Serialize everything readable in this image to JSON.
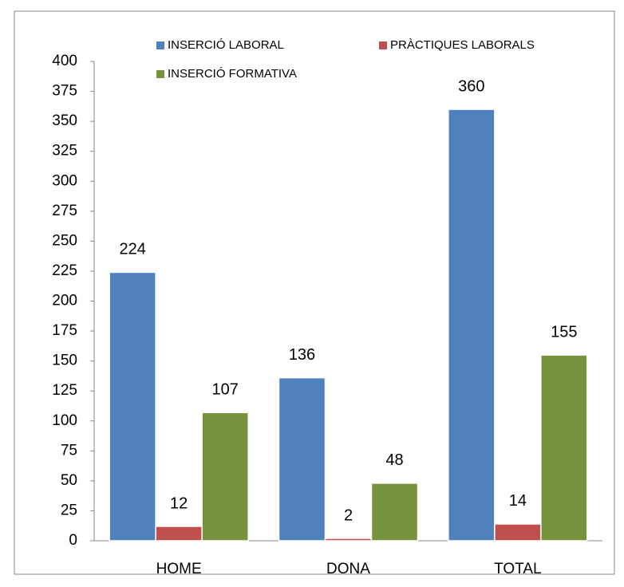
{
  "chart_data": {
    "type": "bar",
    "categories": [
      "HOME",
      "DONA",
      "TOTAL"
    ],
    "series": [
      {
        "name": "INSERCIÓ LABORAL",
        "color": "#4f81bd",
        "values": [
          224,
          136,
          360
        ]
      },
      {
        "name": "PRÀCTIQUES LABORALS",
        "color": "#c0504d",
        "values": [
          12,
          2,
          14
        ]
      },
      {
        "name": "INSERCIÓ FORMATIVA",
        "color": "#77933c",
        "values": [
          107,
          48,
          155
        ]
      }
    ],
    "ylim": [
      0,
      400
    ],
    "yticks": [
      0,
      25,
      50,
      75,
      100,
      125,
      150,
      175,
      200,
      225,
      250,
      275,
      300,
      325,
      350,
      375,
      400
    ],
    "grid": false,
    "legend": "top"
  }
}
